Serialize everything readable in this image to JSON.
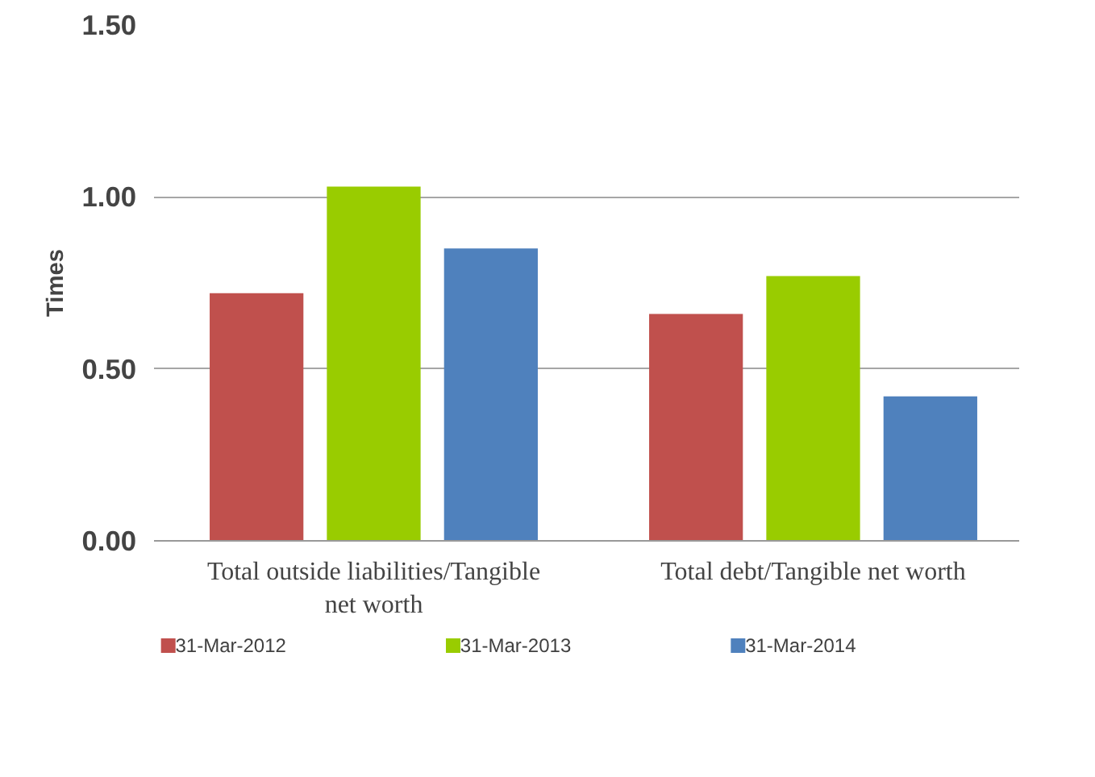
{
  "chart_data": {
    "type": "bar",
    "ylabel": "Times",
    "categories": [
      "Total outside liabilities/Tangible net worth",
      "Total debt/Tangible net worth"
    ],
    "series": [
      {
        "name": "31-Mar-2012",
        "color": "#c0504d",
        "values": [
          0.72,
          0.66
        ]
      },
      {
        "name": "31-Mar-2013",
        "color": "#99cc00",
        "values": [
          1.03,
          0.77
        ]
      },
      {
        "name": "31-Mar-2014",
        "color": "#4f81bd",
        "values": [
          0.85,
          0.42
        ]
      }
    ],
    "ylim": [
      0,
      1.5
    ],
    "yticks": [
      {
        "value": 0,
        "label": "0.00"
      },
      {
        "value": 0.5,
        "label": "0.50"
      },
      {
        "value": 1.0,
        "label": "1.00"
      },
      {
        "value": 1.5,
        "label": "1.50"
      }
    ],
    "grid": "y",
    "legend": "bottom"
  }
}
